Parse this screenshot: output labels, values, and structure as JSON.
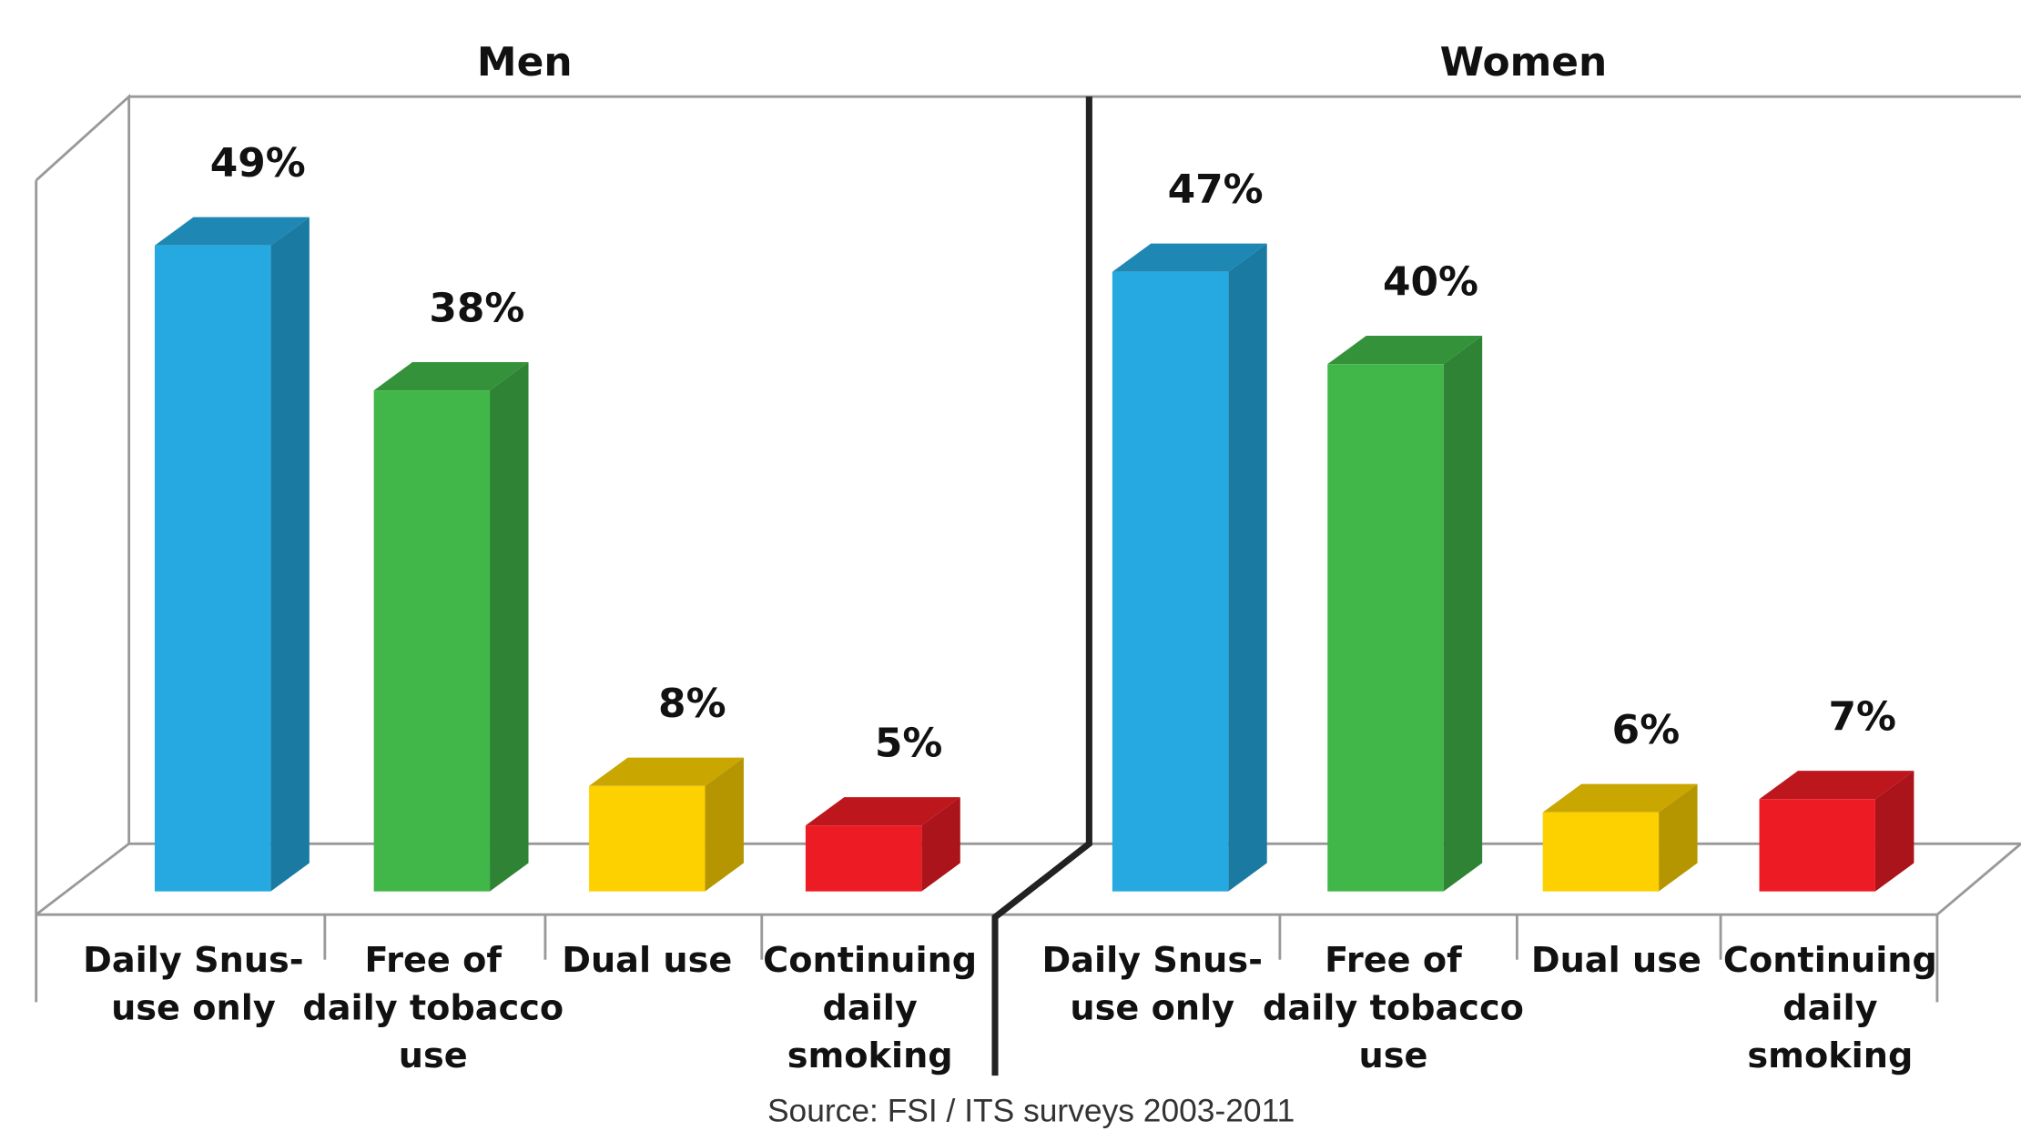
{
  "chart_data": [
    {
      "type": "bar",
      "title": "Men",
      "categories": [
        [
          "Daily Snus-",
          "use only"
        ],
        [
          "Free of",
          "daily tobacco",
          "use"
        ],
        [
          "Dual use"
        ],
        [
          "Continuing",
          "daily",
          "smoking"
        ]
      ],
      "values": [
        49,
        38,
        8,
        5
      ],
      "value_labels": [
        "49%",
        "38%",
        "8%",
        "5%"
      ],
      "colors": [
        "#25a9e0",
        "#41b649",
        "#fdd000",
        "#ed1c24"
      ],
      "ylim": [
        0,
        60
      ]
    },
    {
      "type": "bar",
      "title": "Women",
      "categories": [
        [
          "Daily Snus-",
          "use only"
        ],
        [
          "Free of",
          "daily tobacco",
          "use"
        ],
        [
          "Dual use"
        ],
        [
          "Continuing",
          "daily",
          "smoking"
        ]
      ],
      "values": [
        47,
        40,
        6,
        7
      ],
      "value_labels": [
        "47%",
        "40%",
        "6%",
        "7%"
      ],
      "colors": [
        "#25a9e0",
        "#41b649",
        "#fdd000",
        "#ed1c24"
      ],
      "ylim": [
        0,
        60
      ]
    }
  ],
  "source": "Source: FSI / ITS surveys 2003-2011"
}
